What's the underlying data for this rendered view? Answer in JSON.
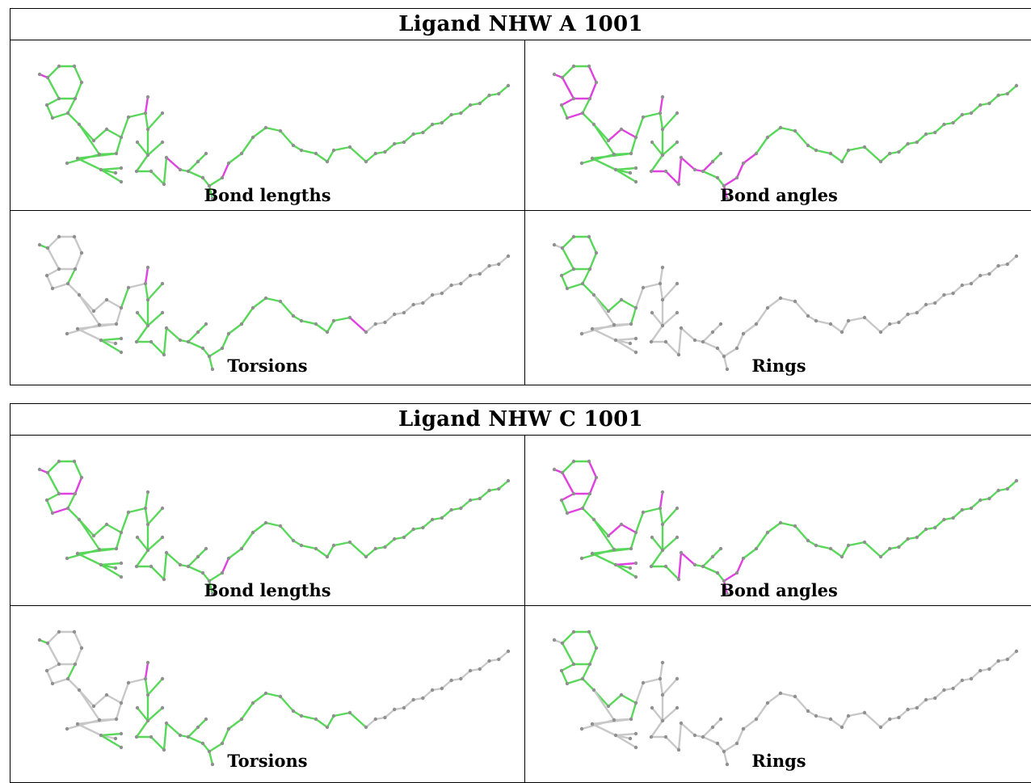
{
  "colors": {
    "ok": "#58d858",
    "outlier": "#e040e0",
    "unassessed": "#c8c8c8",
    "atom": "#909090"
  },
  "panels": [
    {
      "title": "Ligand NHW A 1001",
      "cells": [
        {
          "caption": "Bond lengths",
          "icon": "ligand-structure-image",
          "default": "ok",
          "outliers": [
            10,
            26,
            36,
            44
          ]
        },
        {
          "caption": "Bond angles",
          "icon": "ligand-structure-image",
          "default": "ok",
          "outliers": [
            2,
            3,
            4,
            5,
            6,
            8,
            10,
            13,
            14,
            26,
            33,
            34,
            35,
            36,
            37,
            38,
            42,
            43,
            44,
            45
          ]
        },
        {
          "caption": "Torsions",
          "icon": "ligand-structure-image",
          "default": "gray",
          "green": [
            9,
            10,
            22,
            23,
            24,
            27,
            28,
            29,
            30,
            31,
            32,
            33,
            34,
            35,
            36,
            37,
            38,
            39,
            40,
            41,
            42,
            43,
            44,
            45,
            46,
            47,
            48,
            49,
            50,
            51,
            52,
            53,
            54
          ],
          "outliers": [
            26,
            55
          ]
        },
        {
          "caption": "Rings",
          "icon": "ligand-structure-image",
          "default": "gray",
          "green": [
            0,
            1,
            2,
            3,
            4,
            5,
            6,
            7,
            8,
            9,
            11,
            12,
            13,
            14,
            15
          ],
          "outliers": []
        }
      ]
    },
    {
      "title": "Ligand NHW C 1001",
      "cells": [
        {
          "caption": "Bond lengths",
          "icon": "ligand-structure-image",
          "default": "ok",
          "outliers": [
            3,
            4,
            8,
            10,
            44
          ]
        },
        {
          "caption": "Bond angles",
          "icon": "ligand-structure-image",
          "default": "ok",
          "outliers": [
            2,
            3,
            4,
            5,
            6,
            8,
            10,
            13,
            14,
            22,
            26,
            35,
            36,
            42,
            43,
            44
          ]
        },
        {
          "caption": "Torsions",
          "icon": "ligand-structure-image",
          "default": "gray",
          "green": [
            9,
            10,
            22,
            23,
            27,
            28,
            29,
            30,
            31,
            32,
            33,
            34,
            35,
            36,
            37,
            38,
            39,
            40,
            41,
            42,
            43,
            44,
            45,
            46,
            47,
            48,
            49,
            50,
            51,
            52,
            53,
            54,
            55
          ],
          "outliers": [
            26
          ]
        },
        {
          "caption": "Rings",
          "icon": "ligand-structure-image",
          "default": "gray",
          "green": [
            0,
            1,
            2,
            3,
            4,
            5,
            6,
            7,
            8,
            9,
            11,
            12,
            13,
            14,
            15
          ],
          "outliers": []
        }
      ]
    }
  ]
}
